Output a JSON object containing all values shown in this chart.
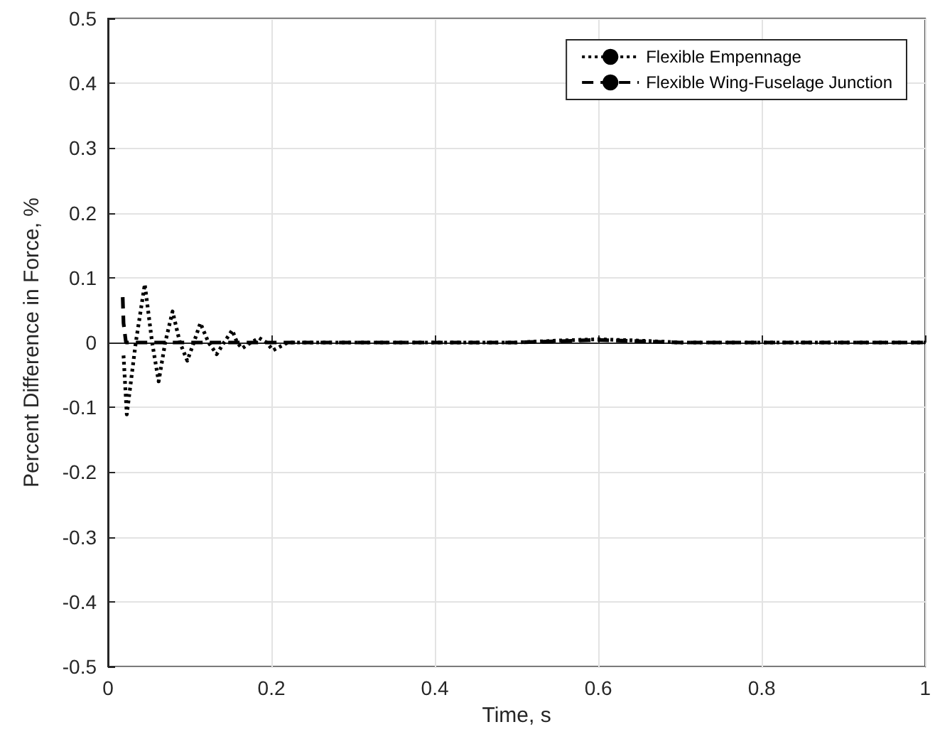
{
  "chart_data": {
    "type": "line",
    "xlabel": "Time, s",
    "ylabel": "Percent Difference in Force, %",
    "xlim": [
      0,
      1
    ],
    "xticks": [
      0,
      0.2,
      0.4,
      0.6,
      0.8,
      1
    ],
    "ylim": [
      -0.5,
      0.5
    ],
    "yticks": [
      -0.5,
      -0.4,
      -0.3,
      -0.2,
      -0.1,
      0,
      0.1,
      0.2,
      0.3,
      0.4,
      0.5
    ],
    "grid": true,
    "legend": "top right",
    "marker": "none",
    "series": [
      {
        "name": "Flexible Empennage",
        "color": "#000000",
        "line_style": "dotted",
        "x": [
          0.019,
          0.023,
          0.034,
          0.045,
          0.054,
          0.062,
          0.07,
          0.079,
          0.088,
          0.097,
          0.105,
          0.113,
          0.123,
          0.133,
          0.142,
          0.152,
          0.158,
          0.164,
          0.175,
          0.185,
          0.194,
          0.202,
          0.22,
          0.3,
          0.4,
          0.5,
          0.55,
          0.6,
          0.65,
          0.7,
          0.8,
          0.9,
          1
        ],
        "values": [
          -0.02,
          -0.111,
          0,
          0.09,
          0,
          -0.06,
          0,
          0.048,
          0,
          -0.028,
          0,
          0.03,
          0,
          -0.018,
          0,
          0.019,
          0,
          -0.009,
          0,
          0.007,
          0,
          -0.012,
          0,
          0,
          0,
          0,
          0.003,
          0.005,
          0.003,
          0,
          0,
          0,
          0
        ]
      },
      {
        "name": "Flexible Wing-Fuselage Junction",
        "color": "#000000",
        "line_style": "dashed",
        "x": [
          0.018,
          0.019,
          0.022,
          0.1,
          0.2,
          0.4,
          0.5,
          0.6,
          0.7,
          0.8,
          1
        ],
        "values": [
          0.07,
          0.03,
          0,
          0,
          0,
          0,
          0,
          0.004,
          0,
          0,
          0
        ]
      }
    ]
  }
}
